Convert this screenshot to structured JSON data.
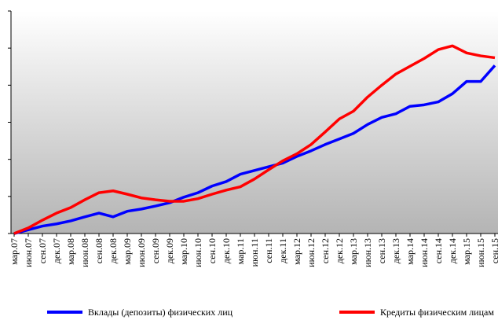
{
  "chart_data": {
    "type": "line",
    "categories": [
      "мар.07",
      "июн.07",
      "сен.07",
      "дек.07",
      "мар.08",
      "июн.08",
      "сен.08",
      "дек.08",
      "мар.09",
      "июн.09",
      "сен.09",
      "дек.09",
      "мар.10",
      "июн.10",
      "сен.10",
      "дек.10",
      "мар.11",
      "июн.11",
      "сен.11",
      "дек.11",
      "мар.12",
      "июн.12",
      "сен.12",
      "дек.12",
      "мар.13",
      "июн.13",
      "сен.13",
      "дек.13",
      "мар.14",
      "июн.14",
      "сен.14",
      "дек.14",
      "мар.15",
      "июн.15",
      "сен.15"
    ],
    "series": [
      {
        "name": "Вклады (депозиты) физических лиц",
        "color": "#0000ff",
        "values": [
          0,
          0.1,
          0.2,
          0.26,
          0.34,
          0.45,
          0.55,
          0.45,
          0.6,
          0.66,
          0.74,
          0.83,
          0.98,
          1.1,
          1.28,
          1.4,
          1.6,
          1.7,
          1.8,
          1.9,
          2.08,
          2.23,
          2.4,
          2.55,
          2.7,
          2.94,
          3.13,
          3.23,
          3.43,
          3.47,
          3.55,
          3.77,
          4.1,
          4.1,
          4.53
        ]
      },
      {
        "name": "Кредиты физическим лицам",
        "color": "#ff0000",
        "values": [
          0,
          0.15,
          0.36,
          0.55,
          0.7,
          0.91,
          1.1,
          1.15,
          1.06,
          0.96,
          0.91,
          0.87,
          0.87,
          0.94,
          1.06,
          1.17,
          1.26,
          1.47,
          1.72,
          1.96,
          2.15,
          2.4,
          2.74,
          3.09,
          3.3,
          3.68,
          4.0,
          4.3,
          4.51,
          4.72,
          4.96,
          5.06,
          4.87,
          4.79,
          4.74
        ]
      }
    ],
    "ylim": [
      0,
      6
    ],
    "yticks": [
      0,
      1,
      2,
      3,
      4,
      5,
      6
    ]
  }
}
